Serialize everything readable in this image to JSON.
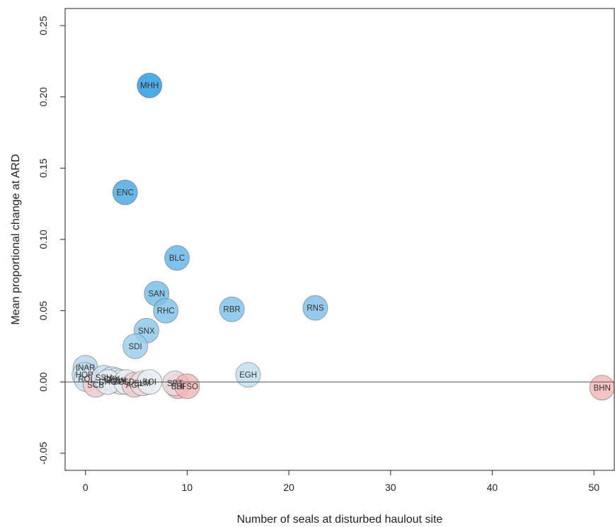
{
  "chart_data": {
    "type": "scatter",
    "title": "",
    "xlabel": "Number of seals at disturbed haulout site",
    "ylabel": "Mean proportional change at ARD",
    "xlim": [
      -2,
      52
    ],
    "ylim": [
      -0.062,
      0.262
    ],
    "xticks": [
      0,
      10,
      20,
      30,
      40,
      50
    ],
    "xtick_labels": [
      "0",
      "10",
      "20",
      "30",
      "40",
      "50"
    ],
    "yticks": [
      -0.05,
      0.0,
      0.05,
      0.1,
      0.15,
      0.2,
      0.25
    ],
    "ytick_labels": [
      "-0.05",
      "0.00",
      "0.05",
      "0.10",
      "0.15",
      "0.20",
      "0.25"
    ],
    "reference_line_y": 0,
    "grid": false,
    "legend": "none",
    "colors": {
      "positive": "#2e9de0",
      "neutral": "#e6edf3",
      "negative": "#f3b8b8"
    },
    "points": [
      {
        "label": "MHH",
        "x": 6.3,
        "y": 0.208
      },
      {
        "label": "ENC",
        "x": 3.9,
        "y": 0.133
      },
      {
        "label": "BLC",
        "x": 9.0,
        "y": 0.087
      },
      {
        "label": "SAN",
        "x": 7.0,
        "y": 0.062
      },
      {
        "label": "RHC",
        "x": 7.9,
        "y": 0.05
      },
      {
        "label": "RBR",
        "x": 14.4,
        "y": 0.051
      },
      {
        "label": "RNS",
        "x": 22.6,
        "y": 0.052
      },
      {
        "label": "SNX",
        "x": 6.0,
        "y": 0.036
      },
      {
        "label": "SDI",
        "x": 4.9,
        "y": 0.025
      },
      {
        "label": "EGH",
        "x": 16.0,
        "y": 0.005
      },
      {
        "label": "INAR",
        "x": 0.0,
        "y": 0.01
      },
      {
        "label": "HOP",
        "x": -0.1,
        "y": 0.005
      },
      {
        "label": "ROL",
        "x": 0.1,
        "y": 0.002
      },
      {
        "label": "SCB",
        "x": 1.0,
        "y": -0.002
      },
      {
        "label": "SSH",
        "x": 1.8,
        "y": 0.003
      },
      {
        "label": "CPK",
        "x": 2.6,
        "y": 0.002
      },
      {
        "label": "BMW",
        "x": 3.0,
        "y": 0.001
      },
      {
        "label": "BOL",
        "x": 3.5,
        "y": 0.0
      },
      {
        "label": "CHO",
        "x": 2.2,
        "y": 0.0
      },
      {
        "label": "PSD",
        "x": 4.0,
        "y": 0.0
      },
      {
        "label": "ACP",
        "x": 4.8,
        "y": -0.002
      },
      {
        "label": "ELM",
        "x": 5.6,
        "y": -0.001
      },
      {
        "label": "BOI",
        "x": 6.3,
        "y": 0.0
      },
      {
        "label": "BHI",
        "x": 9.1,
        "y": -0.003
      },
      {
        "label": "SPT",
        "x": 8.8,
        "y": -0.001
      },
      {
        "label": "SFSO",
        "x": 10.0,
        "y": -0.003
      },
      {
        "label": "BHN",
        "x": 50.8,
        "y": -0.004
      }
    ]
  }
}
